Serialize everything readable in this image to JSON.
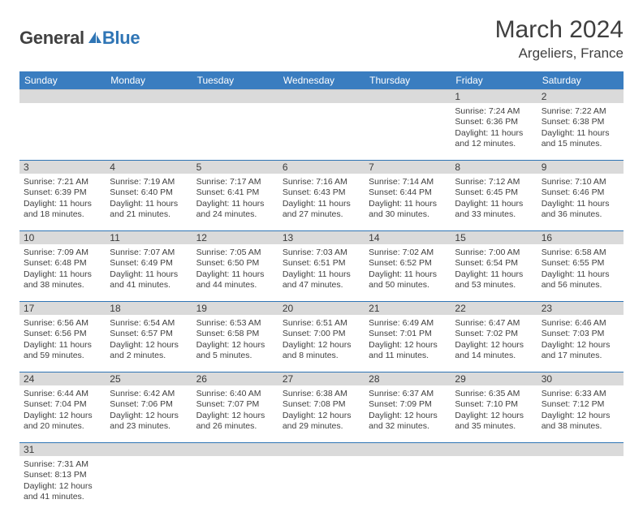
{
  "brand": {
    "part1": "General",
    "part2": "Blue"
  },
  "title": {
    "month": "March 2024",
    "location": "Argeliers, France"
  },
  "colors": {
    "header_bg": "#3a7dc0",
    "header_text": "#ffffff",
    "daynum_bg": "#dadada",
    "week_border": "#2f75b5",
    "logo_blue": "#2f75b5",
    "logo_dark": "#414141",
    "body_text": "#404040"
  },
  "dow": [
    "Sunday",
    "Monday",
    "Tuesday",
    "Wednesday",
    "Thursday",
    "Friday",
    "Saturday"
  ],
  "weeks": [
    [
      null,
      null,
      null,
      null,
      null,
      {
        "n": "1",
        "sunrise": "7:24 AM",
        "sunset": "6:36 PM",
        "dl1": "Daylight: 11 hours",
        "dl2": "and 12 minutes."
      },
      {
        "n": "2",
        "sunrise": "7:22 AM",
        "sunset": "6:38 PM",
        "dl1": "Daylight: 11 hours",
        "dl2": "and 15 minutes."
      }
    ],
    [
      {
        "n": "3",
        "sunrise": "7:21 AM",
        "sunset": "6:39 PM",
        "dl1": "Daylight: 11 hours",
        "dl2": "and 18 minutes."
      },
      {
        "n": "4",
        "sunrise": "7:19 AM",
        "sunset": "6:40 PM",
        "dl1": "Daylight: 11 hours",
        "dl2": "and 21 minutes."
      },
      {
        "n": "5",
        "sunrise": "7:17 AM",
        "sunset": "6:41 PM",
        "dl1": "Daylight: 11 hours",
        "dl2": "and 24 minutes."
      },
      {
        "n": "6",
        "sunrise": "7:16 AM",
        "sunset": "6:43 PM",
        "dl1": "Daylight: 11 hours",
        "dl2": "and 27 minutes."
      },
      {
        "n": "7",
        "sunrise": "7:14 AM",
        "sunset": "6:44 PM",
        "dl1": "Daylight: 11 hours",
        "dl2": "and 30 minutes."
      },
      {
        "n": "8",
        "sunrise": "7:12 AM",
        "sunset": "6:45 PM",
        "dl1": "Daylight: 11 hours",
        "dl2": "and 33 minutes."
      },
      {
        "n": "9",
        "sunrise": "7:10 AM",
        "sunset": "6:46 PM",
        "dl1": "Daylight: 11 hours",
        "dl2": "and 36 minutes."
      }
    ],
    [
      {
        "n": "10",
        "sunrise": "7:09 AM",
        "sunset": "6:48 PM",
        "dl1": "Daylight: 11 hours",
        "dl2": "and 38 minutes."
      },
      {
        "n": "11",
        "sunrise": "7:07 AM",
        "sunset": "6:49 PM",
        "dl1": "Daylight: 11 hours",
        "dl2": "and 41 minutes."
      },
      {
        "n": "12",
        "sunrise": "7:05 AM",
        "sunset": "6:50 PM",
        "dl1": "Daylight: 11 hours",
        "dl2": "and 44 minutes."
      },
      {
        "n": "13",
        "sunrise": "7:03 AM",
        "sunset": "6:51 PM",
        "dl1": "Daylight: 11 hours",
        "dl2": "and 47 minutes."
      },
      {
        "n": "14",
        "sunrise": "7:02 AM",
        "sunset": "6:52 PM",
        "dl1": "Daylight: 11 hours",
        "dl2": "and 50 minutes."
      },
      {
        "n": "15",
        "sunrise": "7:00 AM",
        "sunset": "6:54 PM",
        "dl1": "Daylight: 11 hours",
        "dl2": "and 53 minutes."
      },
      {
        "n": "16",
        "sunrise": "6:58 AM",
        "sunset": "6:55 PM",
        "dl1": "Daylight: 11 hours",
        "dl2": "and 56 minutes."
      }
    ],
    [
      {
        "n": "17",
        "sunrise": "6:56 AM",
        "sunset": "6:56 PM",
        "dl1": "Daylight: 11 hours",
        "dl2": "and 59 minutes."
      },
      {
        "n": "18",
        "sunrise": "6:54 AM",
        "sunset": "6:57 PM",
        "dl1": "Daylight: 12 hours",
        "dl2": "and 2 minutes."
      },
      {
        "n": "19",
        "sunrise": "6:53 AM",
        "sunset": "6:58 PM",
        "dl1": "Daylight: 12 hours",
        "dl2": "and 5 minutes."
      },
      {
        "n": "20",
        "sunrise": "6:51 AM",
        "sunset": "7:00 PM",
        "dl1": "Daylight: 12 hours",
        "dl2": "and 8 minutes."
      },
      {
        "n": "21",
        "sunrise": "6:49 AM",
        "sunset": "7:01 PM",
        "dl1": "Daylight: 12 hours",
        "dl2": "and 11 minutes."
      },
      {
        "n": "22",
        "sunrise": "6:47 AM",
        "sunset": "7:02 PM",
        "dl1": "Daylight: 12 hours",
        "dl2": "and 14 minutes."
      },
      {
        "n": "23",
        "sunrise": "6:46 AM",
        "sunset": "7:03 PM",
        "dl1": "Daylight: 12 hours",
        "dl2": "and 17 minutes."
      }
    ],
    [
      {
        "n": "24",
        "sunrise": "6:44 AM",
        "sunset": "7:04 PM",
        "dl1": "Daylight: 12 hours",
        "dl2": "and 20 minutes."
      },
      {
        "n": "25",
        "sunrise": "6:42 AM",
        "sunset": "7:06 PM",
        "dl1": "Daylight: 12 hours",
        "dl2": "and 23 minutes."
      },
      {
        "n": "26",
        "sunrise": "6:40 AM",
        "sunset": "7:07 PM",
        "dl1": "Daylight: 12 hours",
        "dl2": "and 26 minutes."
      },
      {
        "n": "27",
        "sunrise": "6:38 AM",
        "sunset": "7:08 PM",
        "dl1": "Daylight: 12 hours",
        "dl2": "and 29 minutes."
      },
      {
        "n": "28",
        "sunrise": "6:37 AM",
        "sunset": "7:09 PM",
        "dl1": "Daylight: 12 hours",
        "dl2": "and 32 minutes."
      },
      {
        "n": "29",
        "sunrise": "6:35 AM",
        "sunset": "7:10 PM",
        "dl1": "Daylight: 12 hours",
        "dl2": "and 35 minutes."
      },
      {
        "n": "30",
        "sunrise": "6:33 AM",
        "sunset": "7:12 PM",
        "dl1": "Daylight: 12 hours",
        "dl2": "and 38 minutes."
      }
    ],
    [
      {
        "n": "31",
        "sunrise": "7:31 AM",
        "sunset": "8:13 PM",
        "dl1": "Daylight: 12 hours",
        "dl2": "and 41 minutes."
      },
      null,
      null,
      null,
      null,
      null,
      null
    ]
  ],
  "labels": {
    "sunrise_prefix": "Sunrise: ",
    "sunset_prefix": "Sunset: "
  }
}
